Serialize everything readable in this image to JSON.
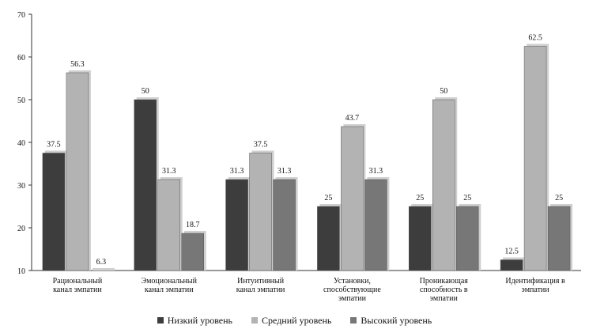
{
  "chart_data": {
    "type": "bar",
    "ylim": [
      10,
      70
    ],
    "yticks": [
      10,
      20,
      30,
      40,
      50,
      60,
      70
    ],
    "grid": false,
    "legend_position": "bottom",
    "categories": [
      [
        "Рациональный",
        "канал эмпатии"
      ],
      [
        "Эмоциональный",
        "канал эмпатии"
      ],
      [
        "Интуитивный",
        "канал эмпатии"
      ],
      [
        "Установки,",
        "способствующие",
        "эмпатии"
      ],
      [
        "Проникающая",
        "способность в",
        "эмпатии"
      ],
      [
        "Идентификация в",
        "эмпатии"
      ]
    ],
    "series": [
      {
        "name": "Низкий уровень",
        "color": "#3d3d3d",
        "values": [
          37.5,
          50,
          31.3,
          25,
          25,
          12.5
        ],
        "labels": [
          "37.5",
          "50",
          "31.3",
          "25",
          "25",
          "12.5"
        ]
      },
      {
        "name": "Средний уровень",
        "color": "#b3b3b3",
        "values": [
          56.3,
          31.3,
          37.5,
          43.7,
          50,
          62.5
        ],
        "labels": [
          "56.3",
          "31.3",
          "37.5",
          "43.7",
          "50",
          "62.5"
        ]
      },
      {
        "name": "Высокий уровень",
        "color": "#777777",
        "values": [
          6.3,
          18.7,
          31.3,
          31.3,
          25,
          25
        ],
        "labels": [
          "6.3",
          "18.7",
          "31.3",
          "31.3",
          "25",
          "25"
        ]
      }
    ]
  }
}
